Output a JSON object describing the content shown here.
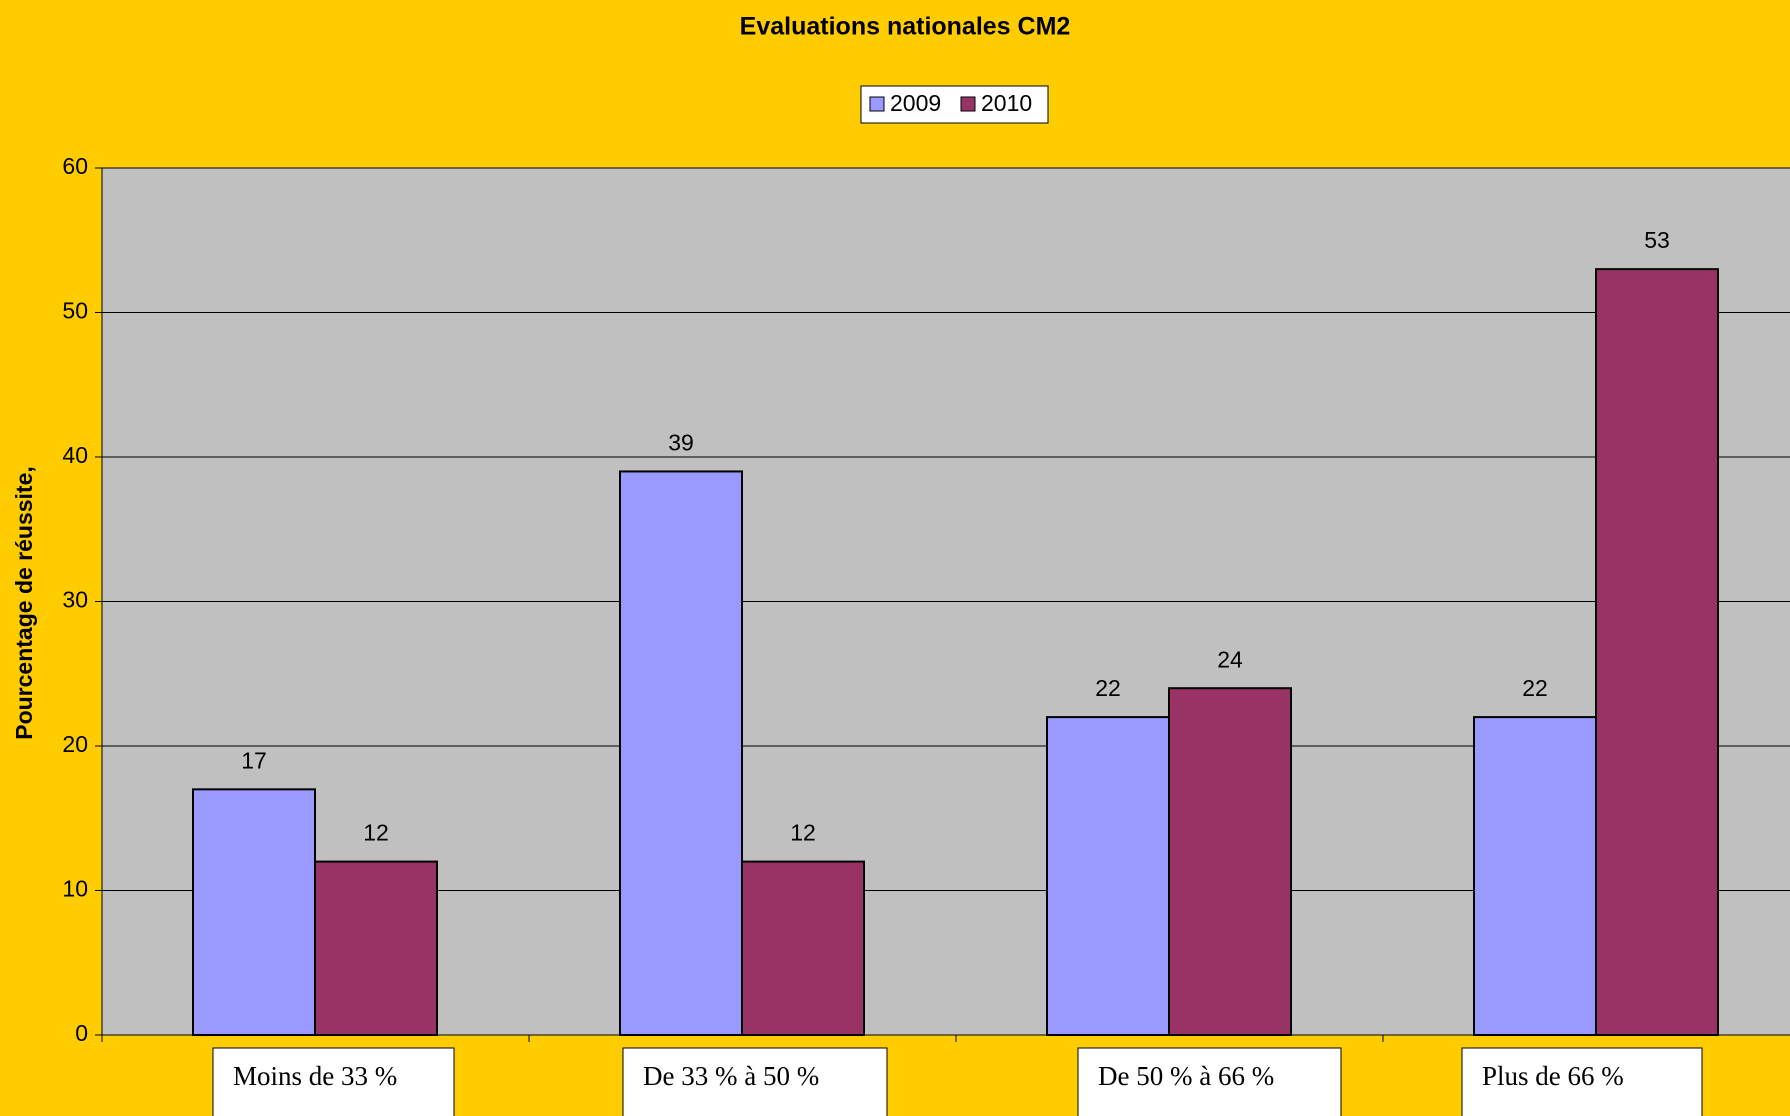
{
  "chart_data": {
    "type": "bar",
    "title": "Evaluations nationales CM2",
    "y_label": "Pourcentage de réussite,",
    "categories": [
      "Moins de 33 %",
      "De 33 % à 50 %",
      "De 50 % à 66 %",
      "Plus de  66 %"
    ],
    "series": [
      {
        "name": "2009",
        "color": "#9999FF",
        "values": [
          17,
          39,
          22,
          22
        ]
      },
      {
        "name": "2010",
        "color": "#993366",
        "values": [
          12,
          12,
          24,
          53
        ]
      }
    ],
    "ylim": [
      0,
      60
    ],
    "yticks": [
      0,
      10,
      20,
      30,
      40,
      50,
      60
    ],
    "grid": true,
    "legend": "top"
  }
}
